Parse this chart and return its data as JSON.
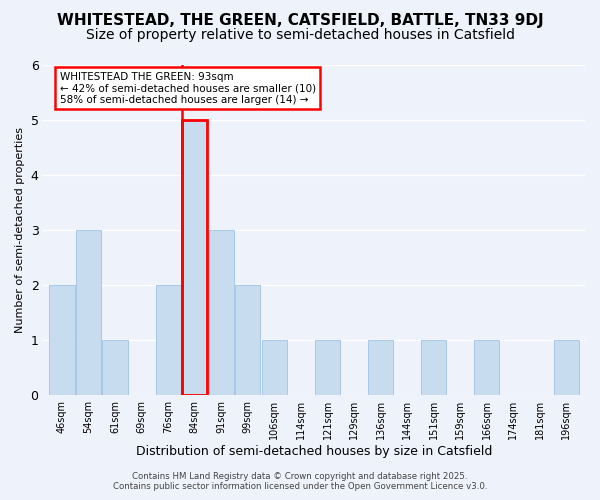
{
  "title": "WHITESTEAD, THE GREEN, CATSFIELD, BATTLE, TN33 9DJ",
  "subtitle": "Size of property relative to semi-detached houses in Catsfield",
  "xlabel": "Distribution of semi-detached houses by size in Catsfield",
  "ylabel": "Number of semi-detached properties",
  "bar_color": "#c8dcf0",
  "bar_edgecolor": "#a8c8e8",
  "background_color": "#eef2fb",
  "grid_color": "white",
  "bin_labels": [
    "46sqm",
    "54sqm",
    "61sqm",
    "69sqm",
    "76sqm",
    "84sqm",
    "91sqm",
    "99sqm",
    "106sqm",
    "114sqm",
    "121sqm",
    "129sqm",
    "136sqm",
    "144sqm",
    "151sqm",
    "159sqm",
    "166sqm",
    "174sqm",
    "181sqm",
    "196sqm"
  ],
  "counts": [
    2,
    3,
    1,
    0,
    2,
    5,
    3,
    2,
    1,
    0,
    1,
    0,
    1,
    0,
    1,
    0,
    1,
    0,
    0,
    1
  ],
  "highlight_bin_index": 5,
  "annotation_title": "WHITESTEAD THE GREEN: 93sqm",
  "annotation_line1": "← 42% of semi-detached houses are smaller (10)",
  "annotation_line2": "58% of semi-detached houses are larger (14) →",
  "footnote1": "Contains HM Land Registry data © Crown copyright and database right 2025.",
  "footnote2": "Contains public sector information licensed under the Open Government Licence v3.0.",
  "ylim": [
    0,
    6
  ],
  "yticks": [
    0,
    1,
    2,
    3,
    4,
    5,
    6
  ],
  "title_fontsize": 11,
  "subtitle_fontsize": 10,
  "xlabel_fontsize": 9,
  "ylabel_fontsize": 8,
  "annotation_box_edgecolor": "red",
  "highlight_line_color": "red"
}
